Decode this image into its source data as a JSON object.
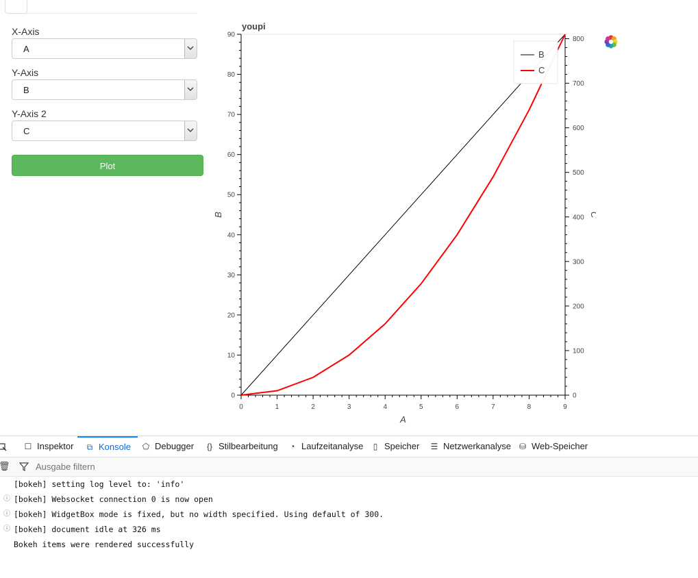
{
  "widgets": {
    "x_axis": {
      "label": "X-Axis",
      "value": "A"
    },
    "y_axis": {
      "label": "Y-Axis",
      "value": "B"
    },
    "y_axis2": {
      "label": "Y-Axis 2",
      "value": "C"
    },
    "plot_button": "Plot"
  },
  "chart_data": {
    "type": "line",
    "title": "youpi",
    "xlabel": "A",
    "ylabel": "B",
    "y2label": "C",
    "x": [
      0,
      1,
      2,
      3,
      4,
      5,
      6,
      7,
      8,
      9
    ],
    "xlim": [
      0,
      9
    ],
    "ylim": [
      0,
      90
    ],
    "y2lim": [
      0,
      810
    ],
    "x_ticks": [
      0,
      1,
      2,
      3,
      4,
      5,
      6,
      7,
      8,
      9
    ],
    "y_ticks": [
      0,
      10,
      20,
      30,
      40,
      50,
      60,
      70,
      80,
      90
    ],
    "y2_ticks": [
      0,
      100,
      200,
      300,
      400,
      500,
      600,
      700,
      800
    ],
    "series": [
      {
        "name": "B",
        "axis": "left",
        "color": "#000000",
        "values": [
          0,
          10,
          20,
          30,
          40,
          50,
          60,
          70,
          80,
          90
        ]
      },
      {
        "name": "C",
        "axis": "right",
        "color": "#ff0000",
        "values": [
          0,
          10,
          40,
          90,
          160,
          250,
          360,
          490,
          640,
          810
        ]
      }
    ],
    "legend": "top-right"
  },
  "devtools": {
    "tabs": [
      {
        "label": "Inspektor",
        "icon": "inspector-icon"
      },
      {
        "label": "Konsole",
        "icon": "console-icon",
        "active": true
      },
      {
        "label": "Debugger",
        "icon": "debugger-icon"
      },
      {
        "label": "Stilbearbeitung",
        "icon": "style-editor-icon"
      },
      {
        "label": "Laufzeitanalyse",
        "icon": "performance-icon"
      },
      {
        "label": "Speicher",
        "icon": "memory-icon"
      },
      {
        "label": "Netzwerkanalyse",
        "icon": "network-icon"
      },
      {
        "label": "Web-Speicher",
        "icon": "storage-icon"
      }
    ],
    "filter_placeholder": "Ausgabe filtern",
    "console": [
      {
        "text": "[bokeh] setting log level to: 'info'",
        "info": false
      },
      {
        "text": "[bokeh] Websocket connection 0 is now open",
        "info": true
      },
      {
        "text": "[bokeh] WidgetBox mode is fixed, but no width specified. Using default of 300.",
        "info": true
      },
      {
        "text": "[bokeh] document idle at 326 ms",
        "info": true
      },
      {
        "text": "Bokeh items were rendered successfully",
        "info": false
      }
    ]
  }
}
